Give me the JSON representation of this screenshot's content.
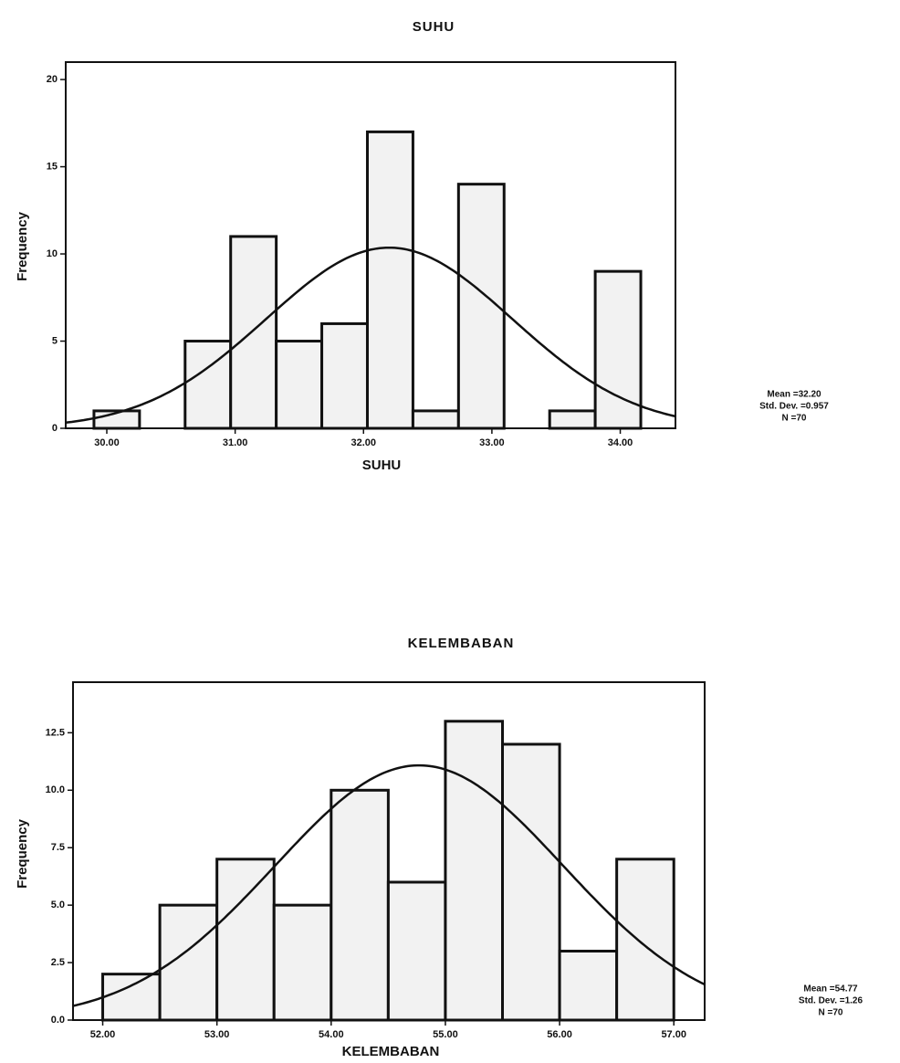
{
  "chart_data": [
    {
      "type": "histogram",
      "title": "SUHU",
      "x_label": "SUHU",
      "y_label": "Frequency",
      "bins": [
        29.9,
        30.255,
        30.61,
        30.965,
        31.32,
        31.675,
        32.03,
        32.385,
        32.74,
        33.095,
        33.45,
        33.805,
        34.16
      ],
      "values": [
        1,
        0,
        5,
        11,
        5,
        6,
        17,
        1,
        14,
        0,
        1,
        9
      ],
      "xlim": [
        29.68,
        34.43
      ],
      "ylim": [
        0,
        21
      ],
      "xticks": [
        {
          "value": 30,
          "label": "30.00"
        },
        {
          "value": 31,
          "label": "31.00"
        },
        {
          "value": 32,
          "label": "32.00"
        },
        {
          "value": 33,
          "label": "33.00"
        },
        {
          "value": 34,
          "label": "34.00"
        }
      ],
      "yticks": [
        0,
        5,
        10,
        15,
        20
      ],
      "stats": [
        {
          "value": 32.2,
          "label": "Mean =32.20"
        },
        {
          "value": 0.957,
          "label": "Std. Dev. =0.957"
        },
        {
          "value": 70,
          "label": "N =70"
        }
      ],
      "normal_curve": true,
      "color": "#f2f2f2"
    },
    {
      "type": "histogram",
      "title": "KELEMBABAN",
      "x_label": "KELEMBABAN",
      "y_label": "Frequency",
      "bins": [
        52,
        52.5,
        53,
        53.5,
        54,
        54.5,
        55,
        55.5,
        56,
        56.5,
        57
      ],
      "values": [
        2,
        5,
        7,
        5,
        10,
        6,
        13,
        12,
        3,
        7
      ],
      "xlim": [
        51.74,
        57.27
      ],
      "ylim": [
        0,
        14.7
      ],
      "xticks": [
        {
          "value": 52,
          "label": "52.00"
        },
        {
          "value": 53,
          "label": "53.00"
        },
        {
          "value": 54,
          "label": "54.00"
        },
        {
          "value": 55,
          "label": "55.00"
        },
        {
          "value": 56,
          "label": "56.00"
        },
        {
          "value": 57,
          "label": "57.00"
        }
      ],
      "yticks": [
        {
          "value": 0,
          "label": "0.0"
        },
        2.5,
        {
          "value": 5,
          "label": "5.0"
        },
        7.5,
        {
          "value": 10,
          "label": "10.0"
        },
        12.5
      ],
      "stats": [
        {
          "value": 54.77,
          "label": "Mean =54.77"
        },
        {
          "value": 1.26,
          "label": "Std. Dev. =1.26"
        },
        {
          "value": 70,
          "label": "N =70"
        }
      ],
      "normal_curve": true,
      "color": "#f2f2f2"
    }
  ]
}
